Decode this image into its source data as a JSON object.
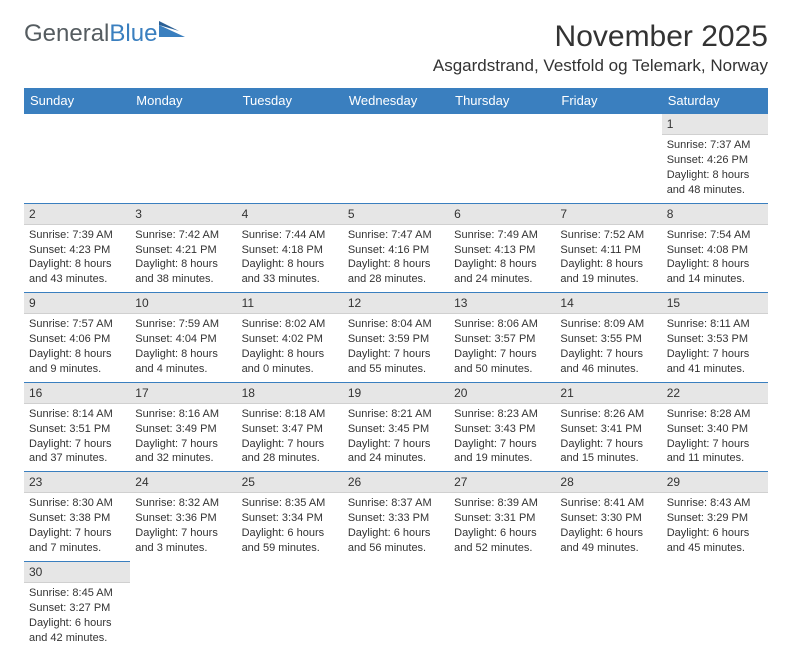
{
  "brand": {
    "text1": "General",
    "text2": "Blue"
  },
  "title": "November 2025",
  "location": "Asgardstrand, Vestfold og Telemark, Norway",
  "colors": {
    "header_bg": "#3a7fbf",
    "header_text": "#ffffff",
    "daynum_bg": "#e6e6e6",
    "cell_border": "#3a7fbf",
    "page_bg": "#ffffff",
    "text": "#333333",
    "logo_gray": "#555c60",
    "logo_blue": "#3a7fbf"
  },
  "typography": {
    "title_fontsize": 30,
    "location_fontsize": 17,
    "header_fontsize": 13,
    "daynum_fontsize": 12,
    "body_fontsize": 11
  },
  "day_headers": [
    "Sunday",
    "Monday",
    "Tuesday",
    "Wednesday",
    "Thursday",
    "Friday",
    "Saturday"
  ],
  "weeks": [
    [
      null,
      null,
      null,
      null,
      null,
      null,
      {
        "n": "1",
        "sr": "Sunrise: 7:37 AM",
        "ss": "Sunset: 4:26 PM",
        "dl": "Daylight: 8 hours and 48 minutes."
      }
    ],
    [
      {
        "n": "2",
        "sr": "Sunrise: 7:39 AM",
        "ss": "Sunset: 4:23 PM",
        "dl": "Daylight: 8 hours and 43 minutes."
      },
      {
        "n": "3",
        "sr": "Sunrise: 7:42 AM",
        "ss": "Sunset: 4:21 PM",
        "dl": "Daylight: 8 hours and 38 minutes."
      },
      {
        "n": "4",
        "sr": "Sunrise: 7:44 AM",
        "ss": "Sunset: 4:18 PM",
        "dl": "Daylight: 8 hours and 33 minutes."
      },
      {
        "n": "5",
        "sr": "Sunrise: 7:47 AM",
        "ss": "Sunset: 4:16 PM",
        "dl": "Daylight: 8 hours and 28 minutes."
      },
      {
        "n": "6",
        "sr": "Sunrise: 7:49 AM",
        "ss": "Sunset: 4:13 PM",
        "dl": "Daylight: 8 hours and 24 minutes."
      },
      {
        "n": "7",
        "sr": "Sunrise: 7:52 AM",
        "ss": "Sunset: 4:11 PM",
        "dl": "Daylight: 8 hours and 19 minutes."
      },
      {
        "n": "8",
        "sr": "Sunrise: 7:54 AM",
        "ss": "Sunset: 4:08 PM",
        "dl": "Daylight: 8 hours and 14 minutes."
      }
    ],
    [
      {
        "n": "9",
        "sr": "Sunrise: 7:57 AM",
        "ss": "Sunset: 4:06 PM",
        "dl": "Daylight: 8 hours and 9 minutes."
      },
      {
        "n": "10",
        "sr": "Sunrise: 7:59 AM",
        "ss": "Sunset: 4:04 PM",
        "dl": "Daylight: 8 hours and 4 minutes."
      },
      {
        "n": "11",
        "sr": "Sunrise: 8:02 AM",
        "ss": "Sunset: 4:02 PM",
        "dl": "Daylight: 8 hours and 0 minutes."
      },
      {
        "n": "12",
        "sr": "Sunrise: 8:04 AM",
        "ss": "Sunset: 3:59 PM",
        "dl": "Daylight: 7 hours and 55 minutes."
      },
      {
        "n": "13",
        "sr": "Sunrise: 8:06 AM",
        "ss": "Sunset: 3:57 PM",
        "dl": "Daylight: 7 hours and 50 minutes."
      },
      {
        "n": "14",
        "sr": "Sunrise: 8:09 AM",
        "ss": "Sunset: 3:55 PM",
        "dl": "Daylight: 7 hours and 46 minutes."
      },
      {
        "n": "15",
        "sr": "Sunrise: 8:11 AM",
        "ss": "Sunset: 3:53 PM",
        "dl": "Daylight: 7 hours and 41 minutes."
      }
    ],
    [
      {
        "n": "16",
        "sr": "Sunrise: 8:14 AM",
        "ss": "Sunset: 3:51 PM",
        "dl": "Daylight: 7 hours and 37 minutes."
      },
      {
        "n": "17",
        "sr": "Sunrise: 8:16 AM",
        "ss": "Sunset: 3:49 PM",
        "dl": "Daylight: 7 hours and 32 minutes."
      },
      {
        "n": "18",
        "sr": "Sunrise: 8:18 AM",
        "ss": "Sunset: 3:47 PM",
        "dl": "Daylight: 7 hours and 28 minutes."
      },
      {
        "n": "19",
        "sr": "Sunrise: 8:21 AM",
        "ss": "Sunset: 3:45 PM",
        "dl": "Daylight: 7 hours and 24 minutes."
      },
      {
        "n": "20",
        "sr": "Sunrise: 8:23 AM",
        "ss": "Sunset: 3:43 PM",
        "dl": "Daylight: 7 hours and 19 minutes."
      },
      {
        "n": "21",
        "sr": "Sunrise: 8:26 AM",
        "ss": "Sunset: 3:41 PM",
        "dl": "Daylight: 7 hours and 15 minutes."
      },
      {
        "n": "22",
        "sr": "Sunrise: 8:28 AM",
        "ss": "Sunset: 3:40 PM",
        "dl": "Daylight: 7 hours and 11 minutes."
      }
    ],
    [
      {
        "n": "23",
        "sr": "Sunrise: 8:30 AM",
        "ss": "Sunset: 3:38 PM",
        "dl": "Daylight: 7 hours and 7 minutes."
      },
      {
        "n": "24",
        "sr": "Sunrise: 8:32 AM",
        "ss": "Sunset: 3:36 PM",
        "dl": "Daylight: 7 hours and 3 minutes."
      },
      {
        "n": "25",
        "sr": "Sunrise: 8:35 AM",
        "ss": "Sunset: 3:34 PM",
        "dl": "Daylight: 6 hours and 59 minutes."
      },
      {
        "n": "26",
        "sr": "Sunrise: 8:37 AM",
        "ss": "Sunset: 3:33 PM",
        "dl": "Daylight: 6 hours and 56 minutes."
      },
      {
        "n": "27",
        "sr": "Sunrise: 8:39 AM",
        "ss": "Sunset: 3:31 PM",
        "dl": "Daylight: 6 hours and 52 minutes."
      },
      {
        "n": "28",
        "sr": "Sunrise: 8:41 AM",
        "ss": "Sunset: 3:30 PM",
        "dl": "Daylight: 6 hours and 49 minutes."
      },
      {
        "n": "29",
        "sr": "Sunrise: 8:43 AM",
        "ss": "Sunset: 3:29 PM",
        "dl": "Daylight: 6 hours and 45 minutes."
      }
    ],
    [
      {
        "n": "30",
        "sr": "Sunrise: 8:45 AM",
        "ss": "Sunset: 3:27 PM",
        "dl": "Daylight: 6 hours and 42 minutes."
      },
      null,
      null,
      null,
      null,
      null,
      null
    ]
  ]
}
